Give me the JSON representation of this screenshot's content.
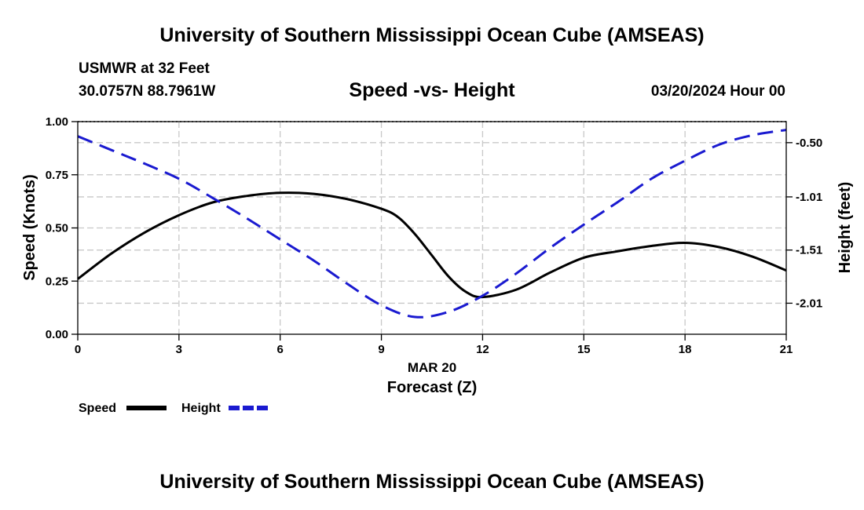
{
  "header": {
    "title": "University of Southern Mississippi Ocean Cube (AMSEAS)",
    "station": "USMWR at 32 Feet",
    "coords": "30.0757N  88.7961W",
    "date": "03/20/2024 Hour 00"
  },
  "footer": {
    "title": "University of Southern Mississippi Ocean Cube (AMSEAS)"
  },
  "legend": {
    "speed_label": "Speed",
    "height_label": "Height"
  },
  "colors": {
    "speed": "#000000",
    "height": "#1a1ad0",
    "grid": "#c8c8c8"
  },
  "chart_data": {
    "type": "line",
    "title": "Speed -vs- Height",
    "xlabel": "Forecast (Z)",
    "xsublabel": "MAR 20",
    "ylabel": "Speed (Knots)",
    "y2label": "Height (feet)",
    "xlim": [
      0,
      21
    ],
    "ylim": [
      0,
      1
    ],
    "y2lim": [
      -2.302,
      -0.302
    ],
    "x_ticks": [
      0,
      3,
      6,
      9,
      12,
      15,
      18,
      21
    ],
    "x_tick_labels": [
      "0",
      "3",
      "6",
      "9",
      "12",
      "15",
      "18",
      "21"
    ],
    "y_ticks": [
      0,
      0.25,
      0.5,
      0.75,
      1.0
    ],
    "y_tick_labels": [
      "0.00",
      "0.25",
      "0.50",
      "0.75",
      "1.00"
    ],
    "y2_ticks": [
      -2.01,
      -1.51,
      -1.01,
      -0.5
    ],
    "y2_tick_labels": [
      "-2.01",
      "-1.51",
      "-1.01",
      "-0.50"
    ],
    "series": [
      {
        "name": "Speed",
        "axis": "left",
        "style": "solid",
        "x": [
          0,
          1,
          2,
          3,
          4,
          5,
          6,
          7,
          8,
          9,
          9.5,
          10,
          10.5,
          11,
          11.5,
          12,
          13,
          14,
          15,
          16,
          17,
          18,
          19,
          20,
          21
        ],
        "values": [
          0.26,
          0.38,
          0.48,
          0.56,
          0.62,
          0.65,
          0.665,
          0.66,
          0.635,
          0.59,
          0.55,
          0.47,
          0.37,
          0.27,
          0.2,
          0.175,
          0.21,
          0.29,
          0.36,
          0.39,
          0.415,
          0.43,
          0.41,
          0.365,
          0.3
        ]
      },
      {
        "name": "Height",
        "axis": "right",
        "style": "dashed",
        "x": [
          0,
          1,
          2,
          3,
          4,
          5,
          6,
          7,
          8,
          9,
          10,
          11,
          12,
          13,
          14,
          15,
          16,
          17,
          18,
          19,
          20,
          21
        ],
        "values": [
          -0.44,
          -0.57,
          -0.7,
          -0.84,
          -1.02,
          -1.21,
          -1.41,
          -1.61,
          -1.83,
          -2.03,
          -2.14,
          -2.09,
          -1.94,
          -1.73,
          -1.49,
          -1.27,
          -1.06,
          -0.84,
          -0.67,
          -0.52,
          -0.43,
          -0.38
        ]
      }
    ]
  }
}
